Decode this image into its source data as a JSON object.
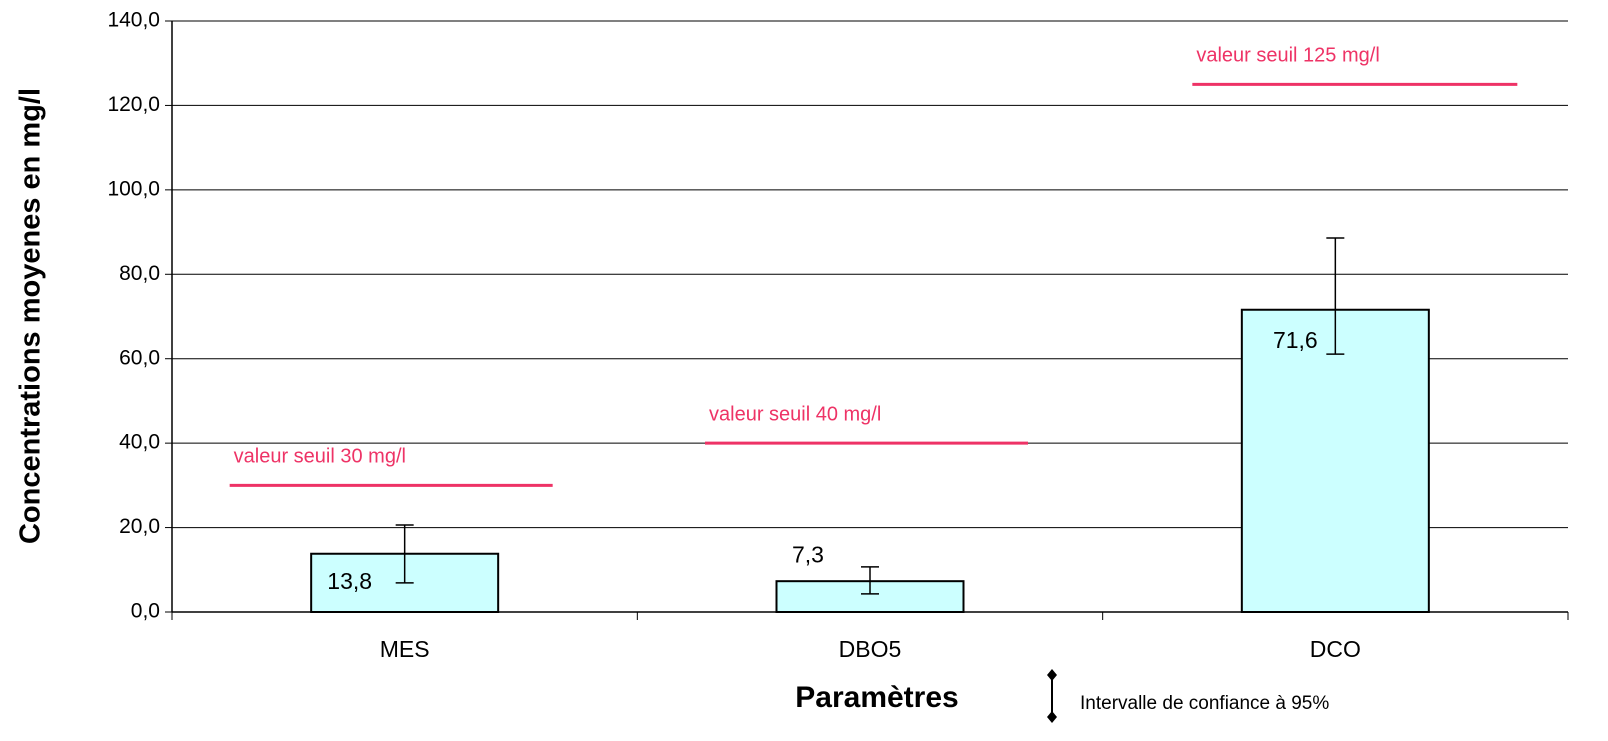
{
  "chart_data": {
    "type": "bar",
    "ylabel": "Concentrations moyenes en mg/l",
    "xlabel": "Paramètres",
    "categories": [
      "MES",
      "DBO5",
      "DCO"
    ],
    "values": [
      13.8,
      7.3,
      71.6
    ],
    "value_labels": [
      "13,8",
      "7,3",
      "71,6"
    ],
    "error_low": [
      6.9,
      3.0,
      10.5
    ],
    "error_high": [
      6.8,
      3.4,
      17.0
    ],
    "error_legend": "Intervalle de confiance à 95%",
    "thresholds": [
      {
        "value": 30,
        "label": "valeur seuil 30 mg/l"
      },
      {
        "value": 40,
        "label": "valeur seuil 40 mg/l"
      },
      {
        "value": 125,
        "label": "valeur seuil 125 mg/l"
      }
    ],
    "threshold_color": "#ee3366",
    "color": "#ccffff",
    "ylim": [
      0,
      140
    ],
    "yticks": [
      {
        "value": 0,
        "label": "0,0"
      },
      {
        "value": 20,
        "label": "20,0"
      },
      {
        "value": 40,
        "label": "40,0"
      },
      {
        "value": 60,
        "label": "60,0"
      },
      {
        "value": 80,
        "label": "80,0"
      },
      {
        "value": 100,
        "label": "100,0"
      },
      {
        "value": 120,
        "label": "120,0"
      },
      {
        "value": 140,
        "label": "140,0"
      }
    ],
    "grid": true
  }
}
